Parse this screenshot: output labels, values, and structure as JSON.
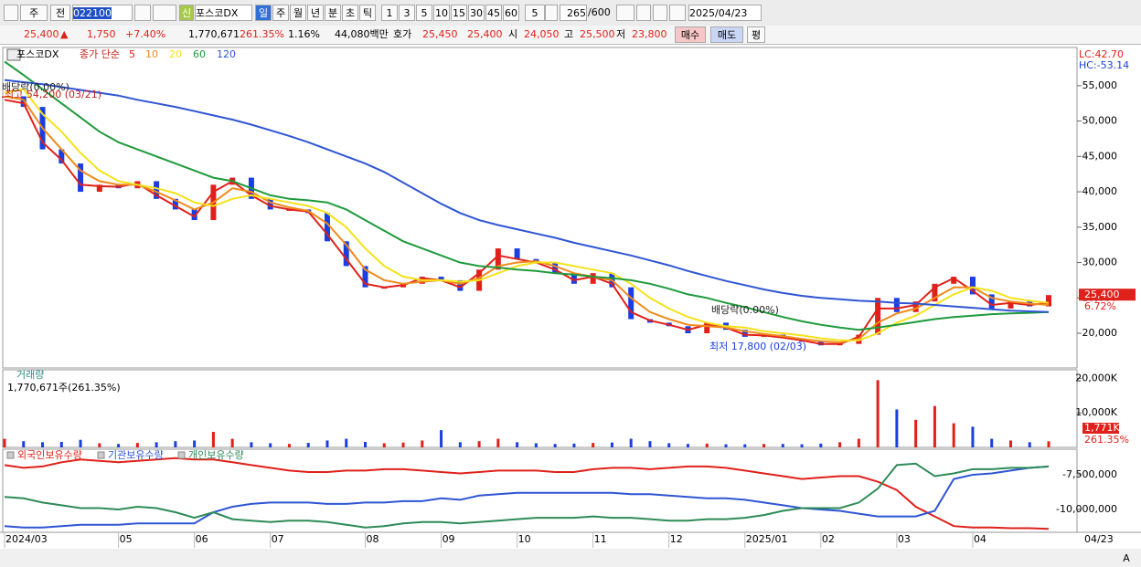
{
  "toolbar": {
    "period_type": "주",
    "prev": "전",
    "code": "022100",
    "stock_name": "포스코DX",
    "credit": "신",
    "intervals": [
      "일",
      "주",
      "월",
      "년",
      "분",
      "초",
      "틱"
    ],
    "minutes": [
      "1",
      "3",
      "5",
      "10",
      "15",
      "30",
      "45",
      "60"
    ],
    "count_unit": "5",
    "view_count": "265",
    "max_count": "/600",
    "date": "2025/04/23"
  },
  "quote": {
    "price": "25,400",
    "arrow": "▲",
    "change": "1,750",
    "change_pct": "+7.40%",
    "volume": "1,770,671",
    "volume_ratio": "261.35%",
    "turnover": "1.16%",
    "amount": "44,080백만",
    "ask_label": "호가",
    "ask": "25,450",
    "bid": "25,400",
    "open_label": "시",
    "open": "24,050",
    "high_label": "고",
    "high": "25,500",
    "low_label": "저",
    "low": "23,800",
    "buy": "매수",
    "sell": "매도",
    "avg": "평"
  },
  "chart_data": [
    {
      "type": "line",
      "title": "포스코DX",
      "legend_title": "종가 단순",
      "grid": false,
      "categories": [
        "2024/03",
        null,
        null,
        null,
        null,
        null,
        "05",
        null,
        null,
        null,
        "06",
        null,
        null,
        null,
        "07",
        null,
        null,
        null,
        null,
        "08",
        null,
        null,
        null,
        "09",
        null,
        null,
        null,
        "10",
        null,
        null,
        null,
        "11",
        null,
        null,
        null,
        "12",
        null,
        null,
        null,
        "2025/01",
        null,
        null,
        null,
        "02",
        null,
        null,
        null,
        "03",
        null,
        null,
        null,
        "04",
        null,
        null,
        null,
        null
      ],
      "x_end_label": "04/23",
      "close": [
        53500,
        52000,
        46000,
        44000,
        40000,
        41000,
        40500,
        41500,
        39000,
        37500,
        36000,
        41000,
        42000,
        39000,
        37500,
        37500,
        37000,
        33000,
        29500,
        26500,
        26500,
        27000,
        28000,
        27500,
        26000,
        29000,
        32000,
        30500,
        30000,
        28500,
        27000,
        28500,
        26500,
        22000,
        21500,
        21000,
        20000,
        21500,
        20500,
        19500,
        19800,
        19300,
        18800,
        18300,
        18500,
        19800,
        25000,
        23000,
        24500,
        27000,
        28000,
        25500,
        23500,
        24500,
        23800,
        25400
      ],
      "up_color": "#e0201a",
      "down_color": "#1a3fe0",
      "series": [
        {
          "name": "5",
          "color": "#e0201a",
          "values": [
            53000,
            52500,
            47000,
            44500,
            41000,
            40800,
            40700,
            41200,
            39500,
            38000,
            36500,
            40000,
            41500,
            39500,
            38000,
            37500,
            37200,
            34000,
            30500,
            27000,
            26500,
            26800,
            27800,
            27500,
            26500,
            28500,
            31000,
            30500,
            30000,
            29000,
            27500,
            28000,
            27000,
            23000,
            21800,
            21200,
            20500,
            21200,
            20800,
            19800,
            19700,
            19400,
            19000,
            18500,
            18500,
            19500,
            23500,
            23500,
            24000,
            26500,
            27800,
            26000,
            24000,
            24300,
            24000,
            24300
          ]
        },
        {
          "name": "10",
          "color": "#f08a1c",
          "values": [
            53500,
            53000,
            49000,
            46000,
            43000,
            41500,
            41000,
            41000,
            40000,
            38800,
            37500,
            38500,
            40500,
            40000,
            38500,
            37800,
            37300,
            35500,
            32500,
            29000,
            27500,
            27000,
            27300,
            27500,
            27000,
            27800,
            29500,
            30000,
            30200,
            29500,
            28500,
            28000,
            27500,
            25000,
            23000,
            22000,
            21200,
            21000,
            20800,
            20300,
            19900,
            19600,
            19200,
            18900,
            18700,
            19200,
            21500,
            22800,
            23500,
            25000,
            26500,
            26500,
            25000,
            24500,
            24200,
            24000
          ]
        },
        {
          "name": "20",
          "color": "#f5e21a",
          "values": [
            54000,
            54500,
            51000,
            48500,
            45500,
            43000,
            41500,
            41000,
            40500,
            39800,
            38500,
            38000,
            39000,
            39500,
            39000,
            38500,
            38000,
            37000,
            35000,
            32000,
            29500,
            28000,
            27500,
            27500,
            27300,
            27500,
            28500,
            29500,
            30000,
            30000,
            29500,
            29000,
            28500,
            27000,
            25000,
            23500,
            22300,
            21500,
            21000,
            20800,
            20300,
            20000,
            19700,
            19300,
            19000,
            19000,
            20000,
            21500,
            22500,
            24000,
            25500,
            26500,
            26000,
            25000,
            24600,
            24300
          ]
        },
        {
          "name": "60",
          "color": "#1e9a3c",
          "values": [
            58400,
            56500,
            54500,
            52500,
            50500,
            48500,
            47000,
            46000,
            45000,
            44000,
            43000,
            42000,
            41500,
            40500,
            39500,
            39000,
            38800,
            38500,
            37500,
            36000,
            34500,
            33000,
            32000,
            31000,
            30000,
            29500,
            29300,
            29000,
            28800,
            28500,
            28300,
            28000,
            27800,
            27500,
            27000,
            26300,
            25500,
            25000,
            24300,
            23700,
            23000,
            22300,
            21700,
            21200,
            20800,
            20500,
            20800,
            21200,
            21600,
            22000,
            22300,
            22500,
            22700,
            22800,
            22900,
            23000
          ]
        },
        {
          "name": "120",
          "color": "#2f55d4",
          "values": [
            55800,
            55500,
            55200,
            54800,
            54400,
            54000,
            53600,
            53000,
            52500,
            52000,
            51400,
            50800,
            50200,
            49500,
            48700,
            47900,
            47000,
            46000,
            45000,
            44000,
            42800,
            41300,
            39800,
            38300,
            37000,
            36000,
            35300,
            34700,
            34100,
            33500,
            32800,
            32200,
            31600,
            31000,
            30300,
            29600,
            28800,
            28100,
            27400,
            26800,
            26200,
            25700,
            25300,
            25000,
            24800,
            24600,
            24500,
            24300,
            24200,
            24000,
            23800,
            23600,
            23400,
            23200,
            23100,
            23000
          ]
        }
      ],
      "ylim": [
        15100,
        60400
      ],
      "yticks": [
        {
          "value": 20000,
          "label": "20,000"
        },
        {
          "value": 25000,
          "label": "25,000"
        },
        {
          "value": 30000,
          "label": "30,000"
        },
        {
          "value": 35000,
          "label": "35,000"
        },
        {
          "value": 40000,
          "label": "40,000"
        },
        {
          "value": 45000,
          "label": "45,000"
        },
        {
          "value": 50000,
          "label": "50,000"
        },
        {
          "value": 55000,
          "label": "55,000"
        }
      ],
      "annotations": [
        "배당락(0.00%)",
        "최고 54,200 (03/21)",
        "배당락(0.00%)",
        "최저 17,800 (02/03)"
      ],
      "last_label": "25,400",
      "last_change": "6.72%",
      "lc": "LC:42.70",
      "hc": "HC:-53.14"
    },
    {
      "type": "bar",
      "title": "거래량",
      "subtitle": "1,770,671주(261.35%)",
      "grid": false,
      "values": [
        2500,
        1800,
        1500,
        1600,
        2200,
        1200,
        1000,
        1300,
        1500,
        1800,
        2000,
        4500,
        2500,
        1500,
        1200,
        1000,
        1300,
        2000,
        2500,
        1600,
        1200,
        1400,
        2000,
        5000,
        1500,
        1800,
        2500,
        1500,
        1200,
        1000,
        1100,
        1300,
        1400,
        2500,
        1800,
        1200,
        1000,
        1100,
        900,
        900,
        1000,
        1000,
        900,
        1100,
        1500,
        2500,
        19500,
        11000,
        8000,
        12000,
        7000,
        6000,
        2500,
        2000,
        1500,
        1771
      ],
      "ylim": [
        0,
        22500
      ],
      "yticks": [
        {
          "value": 10000,
          "label": "10,000K"
        },
        {
          "value": 20000,
          "label": "20,000K"
        }
      ],
      "last_label": "1,771K",
      "last_ratio": "261.35%"
    },
    {
      "type": "line",
      "grid": false,
      "series": [
        {
          "name": "외국인보유수량",
          "color": "#e0201a",
          "values": [
            -6800000,
            -7000000,
            -6900000,
            -6600000,
            -6400000,
            -6500000,
            -6600000,
            -6500000,
            -6400000,
            -6300000,
            -6400000,
            -6400000,
            -6600000,
            -6800000,
            -7000000,
            -7200000,
            -7300000,
            -7300000,
            -7200000,
            -7200000,
            -7100000,
            -7100000,
            -7200000,
            -7300000,
            -7400000,
            -7300000,
            -7200000,
            -7200000,
            -7200000,
            -7300000,
            -7300000,
            -7100000,
            -7000000,
            -7000000,
            -7100000,
            -7000000,
            -6900000,
            -6900000,
            -7000000,
            -7200000,
            -7400000,
            -7600000,
            -7800000,
            -7700000,
            -7600000,
            -7600000,
            -8000000,
            -8600000,
            -9800000,
            -10500000,
            -11200000,
            -11300000,
            -11300000,
            -11350000,
            -11350000,
            -11400000
          ]
        },
        {
          "name": "기관보유수량",
          "color": "#2f55d4",
          "values": [
            -11200000,
            -11300000,
            -11300000,
            -11200000,
            -11100000,
            -11100000,
            -11100000,
            -11000000,
            -11000000,
            -11000000,
            -11000000,
            -10200000,
            -9800000,
            -9600000,
            -9500000,
            -9500000,
            -9500000,
            -9600000,
            -9600000,
            -9500000,
            -9500000,
            -9400000,
            -9400000,
            -9200000,
            -9300000,
            -9000000,
            -8900000,
            -8800000,
            -8800000,
            -8800000,
            -8800000,
            -8800000,
            -8800000,
            -8900000,
            -8900000,
            -9000000,
            -9100000,
            -9200000,
            -9200000,
            -9300000,
            -9500000,
            -9700000,
            -9900000,
            -10000000,
            -10100000,
            -10300000,
            -10500000,
            -10500000,
            -10500000,
            -10100000,
            -7800000,
            -7500000,
            -7400000,
            -7200000,
            -7000000,
            -6900000
          ]
        },
        {
          "name": "개인보유수량",
          "color": "#2e8b57",
          "values": [
            -9100000,
            -9200000,
            -9500000,
            -9700000,
            -9900000,
            -9900000,
            -10000000,
            -9800000,
            -9900000,
            -10200000,
            -10600000,
            -10200000,
            -10700000,
            -10800000,
            -10900000,
            -10800000,
            -10800000,
            -10900000,
            -11100000,
            -11300000,
            -11200000,
            -11000000,
            -10900000,
            -10900000,
            -11000000,
            -10900000,
            -10800000,
            -10700000,
            -10600000,
            -10600000,
            -10600000,
            -10500000,
            -10600000,
            -10600000,
            -10700000,
            -10800000,
            -10800000,
            -10700000,
            -10700000,
            -10600000,
            -10400000,
            -10100000,
            -9900000,
            -9900000,
            -9900000,
            -9500000,
            -8500000,
            -6800000,
            -6700000,
            -7600000,
            -7400000,
            -7100000,
            -7100000,
            -7000000,
            -7000000,
            -6900000
          ]
        }
      ],
      "ylim": [
        -11645000,
        -5658000
      ],
      "yticks": [
        {
          "value": -10000000,
          "label": "-10,000,000"
        },
        {
          "value": -7500000,
          "label": "-7,500,000"
        }
      ]
    }
  ],
  "scrollbar": {
    "zoom": "A"
  }
}
